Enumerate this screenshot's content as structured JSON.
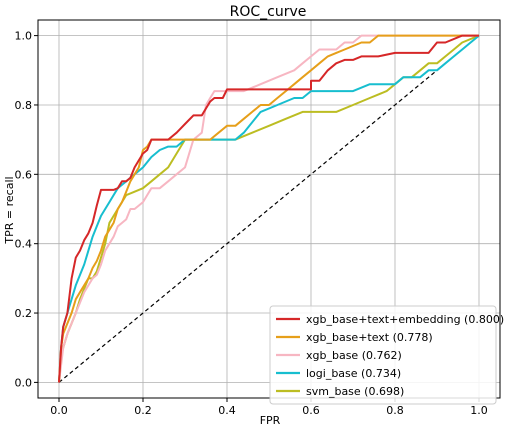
{
  "chart_data": {
    "type": "line",
    "title": "ROC_curve",
    "xlabel": "FPR",
    "ylabel": "TPR = recall",
    "xlim": [
      -0.05,
      1.05
    ],
    "ylim": [
      -0.045,
      1.045
    ],
    "xticks": [
      0.0,
      0.2,
      0.4,
      0.6,
      0.8,
      1.0
    ],
    "yticks": [
      0.0,
      0.2,
      0.4,
      0.6,
      0.8,
      1.0
    ],
    "tick_labels": [
      "0.0",
      "0.2",
      "0.4",
      "0.6",
      "0.8",
      "1.0"
    ],
    "grid": true,
    "legend_position": "lower-right",
    "diagonal": {
      "style": "dashed",
      "color": "#000000"
    },
    "series": [
      {
        "name": "xgb_base+text+embedding (0.800)",
        "color": "#d62728",
        "x": [
          0,
          0.005,
          0.01,
          0.02,
          0.025,
          0.03,
          0.04,
          0.05,
          0.06,
          0.07,
          0.08,
          0.09,
          0.1,
          0.12,
          0.13,
          0.14,
          0.15,
          0.16,
          0.17,
          0.18,
          0.19,
          0.2,
          0.21,
          0.22,
          0.23,
          0.24,
          0.26,
          0.28,
          0.3,
          0.32,
          0.34,
          0.35,
          0.36,
          0.37,
          0.38,
          0.39,
          0.4,
          0.42,
          0.44,
          0.48,
          0.52,
          0.56,
          0.6,
          0.6,
          0.62,
          0.64,
          0.66,
          0.68,
          0.7,
          0.72,
          0.76,
          0.8,
          0.84,
          0.88,
          0.9,
          0.92,
          0.96,
          1.0
        ],
        "y": [
          0,
          0.1,
          0.16,
          0.2,
          0.25,
          0.3,
          0.36,
          0.38,
          0.41,
          0.43,
          0.46,
          0.51,
          0.555,
          0.555,
          0.555,
          0.56,
          0.58,
          0.58,
          0.59,
          0.62,
          0.64,
          0.66,
          0.67,
          0.7,
          0.7,
          0.7,
          0.7,
          0.72,
          0.745,
          0.77,
          0.77,
          0.79,
          0.81,
          0.82,
          0.82,
          0.82,
          0.845,
          0.845,
          0.845,
          0.845,
          0.845,
          0.845,
          0.845,
          0.87,
          0.87,
          0.9,
          0.92,
          0.93,
          0.93,
          0.94,
          0.94,
          0.95,
          0.95,
          0.95,
          0.98,
          0.98,
          1.0,
          1.0
        ]
      },
      {
        "name": "xgb_base+text (0.778)",
        "color": "#e69f1a",
        "x": [
          0,
          0.005,
          0.01,
          0.02,
          0.03,
          0.04,
          0.05,
          0.06,
          0.07,
          0.08,
          0.09,
          0.1,
          0.11,
          0.12,
          0.13,
          0.14,
          0.15,
          0.16,
          0.17,
          0.18,
          0.19,
          0.2,
          0.21,
          0.22,
          0.24,
          0.28,
          0.32,
          0.36,
          0.38,
          0.4,
          0.42,
          0.44,
          0.46,
          0.48,
          0.5,
          0.52,
          0.54,
          0.56,
          0.58,
          0.6,
          0.62,
          0.64,
          0.66,
          0.68,
          0.7,
          0.72,
          0.74,
          0.76,
          0.8,
          0.84,
          0.88,
          0.92,
          0.96,
          1.0
        ],
        "y": [
          0,
          0.1,
          0.14,
          0.17,
          0.2,
          0.24,
          0.26,
          0.28,
          0.3,
          0.33,
          0.35,
          0.38,
          0.42,
          0.44,
          0.46,
          0.5,
          0.52,
          0.55,
          0.58,
          0.6,
          0.62,
          0.67,
          0.68,
          0.7,
          0.7,
          0.7,
          0.7,
          0.7,
          0.72,
          0.74,
          0.74,
          0.76,
          0.78,
          0.8,
          0.8,
          0.82,
          0.84,
          0.86,
          0.88,
          0.9,
          0.92,
          0.94,
          0.95,
          0.96,
          0.97,
          0.98,
          0.98,
          1.0,
          1.0,
          1.0,
          1.0,
          1.0,
          1.0,
          1.0
        ]
      },
      {
        "name": "xgb_base (0.762)",
        "color": "#f7b6c2",
        "x": [
          0,
          0.005,
          0.01,
          0.02,
          0.03,
          0.04,
          0.05,
          0.06,
          0.07,
          0.08,
          0.09,
          0.1,
          0.11,
          0.12,
          0.13,
          0.14,
          0.15,
          0.16,
          0.17,
          0.18,
          0.2,
          0.21,
          0.22,
          0.24,
          0.26,
          0.28,
          0.3,
          0.32,
          0.34,
          0.35,
          0.36,
          0.37,
          0.38,
          0.4,
          0.44,
          0.48,
          0.52,
          0.56,
          0.58,
          0.6,
          0.62,
          0.64,
          0.66,
          0.68,
          0.7,
          0.72,
          0.74,
          0.76,
          0.8,
          0.84,
          0.88,
          0.92,
          0.96,
          1.0
        ],
        "y": [
          0,
          0.05,
          0.1,
          0.14,
          0.17,
          0.2,
          0.23,
          0.26,
          0.28,
          0.3,
          0.31,
          0.34,
          0.38,
          0.4,
          0.42,
          0.45,
          0.46,
          0.47,
          0.5,
          0.5,
          0.52,
          0.54,
          0.56,
          0.56,
          0.58,
          0.6,
          0.62,
          0.7,
          0.72,
          0.8,
          0.82,
          0.84,
          0.84,
          0.84,
          0.84,
          0.86,
          0.88,
          0.9,
          0.92,
          0.94,
          0.96,
          0.96,
          0.96,
          0.98,
          0.98,
          1.0,
          1.0,
          1.0,
          1.0,
          1.0,
          1.0,
          1.0,
          1.0,
          1.0
        ]
      },
      {
        "name": "logi_base (0.734)",
        "color": "#17becf",
        "x": [
          0,
          0.005,
          0.01,
          0.02,
          0.03,
          0.04,
          0.05,
          0.06,
          0.07,
          0.08,
          0.09,
          0.1,
          0.11,
          0.12,
          0.13,
          0.14,
          0.16,
          0.18,
          0.2,
          0.22,
          0.24,
          0.26,
          0.28,
          0.3,
          0.34,
          0.38,
          0.42,
          0.44,
          0.48,
          0.52,
          0.56,
          0.58,
          0.6,
          0.62,
          0.66,
          0.7,
          0.74,
          0.78,
          0.8,
          0.82,
          0.84,
          0.86,
          0.88,
          0.9,
          0.92,
          0.94,
          0.96,
          0.98,
          1.0
        ],
        "y": [
          0,
          0.1,
          0.16,
          0.2,
          0.24,
          0.28,
          0.31,
          0.34,
          0.38,
          0.42,
          0.45,
          0.48,
          0.5,
          0.52,
          0.54,
          0.56,
          0.58,
          0.6,
          0.62,
          0.65,
          0.67,
          0.68,
          0.68,
          0.7,
          0.7,
          0.7,
          0.7,
          0.72,
          0.78,
          0.8,
          0.82,
          0.82,
          0.84,
          0.84,
          0.84,
          0.84,
          0.86,
          0.86,
          0.86,
          0.88,
          0.88,
          0.88,
          0.9,
          0.9,
          0.92,
          0.94,
          0.96,
          0.98,
          1.0
        ]
      },
      {
        "name": "svm_base (0.698)",
        "color": "#bcbd22",
        "x": [
          0,
          0.005,
          0.01,
          0.02,
          0.03,
          0.04,
          0.05,
          0.06,
          0.07,
          0.08,
          0.09,
          0.1,
          0.11,
          0.12,
          0.14,
          0.16,
          0.18,
          0.2,
          0.22,
          0.24,
          0.26,
          0.28,
          0.3,
          0.34,
          0.38,
          0.42,
          0.46,
          0.5,
          0.54,
          0.58,
          0.62,
          0.66,
          0.7,
          0.74,
          0.78,
          0.8,
          0.82,
          0.84,
          0.86,
          0.88,
          0.9,
          0.92,
          0.94,
          0.96,
          1.0
        ],
        "y": [
          0,
          0.07,
          0.1,
          0.14,
          0.17,
          0.2,
          0.24,
          0.27,
          0.3,
          0.3,
          0.32,
          0.36,
          0.4,
          0.46,
          0.5,
          0.54,
          0.55,
          0.56,
          0.58,
          0.6,
          0.62,
          0.66,
          0.7,
          0.7,
          0.7,
          0.7,
          0.72,
          0.74,
          0.76,
          0.78,
          0.78,
          0.78,
          0.8,
          0.82,
          0.84,
          0.86,
          0.88,
          0.88,
          0.9,
          0.92,
          0.92,
          0.94,
          0.96,
          0.98,
          1.0
        ]
      }
    ]
  }
}
